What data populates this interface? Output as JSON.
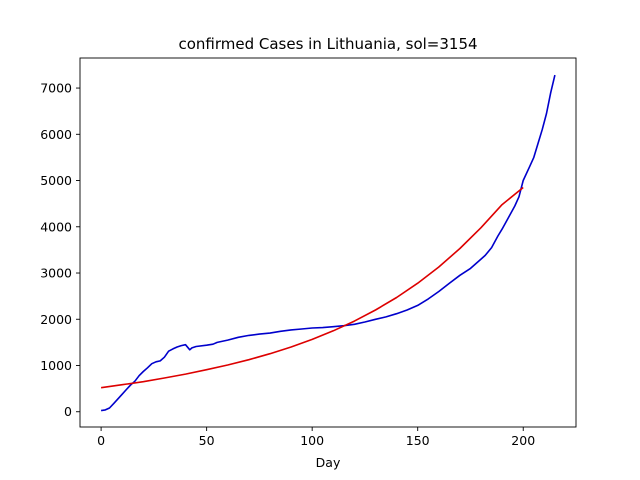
{
  "chart_data": {
    "type": "line",
    "title": "confirmed Cases in Lithuania, sol=3154",
    "xlabel": "Day",
    "ylabel": "",
    "xlim": [
      -10,
      225
    ],
    "ylim": [
      -330,
      7650
    ],
    "xticks": [
      0,
      50,
      100,
      150,
      200
    ],
    "yticks": [
      0,
      1000,
      2000,
      3000,
      4000,
      5000,
      6000,
      7000
    ],
    "grid": false,
    "series": [
      {
        "color": "#0000cc",
        "x": [
          0,
          2,
          4,
          6,
          8,
          10,
          12,
          14,
          16,
          18,
          20,
          22,
          24,
          26,
          28,
          30,
          32,
          34,
          36,
          38,
          40,
          42,
          43,
          45,
          50,
          53,
          55,
          60,
          65,
          70,
          75,
          80,
          85,
          90,
          95,
          100,
          105,
          110,
          115,
          120,
          125,
          130,
          135,
          140,
          145,
          150,
          155,
          160,
          165,
          170,
          175,
          180,
          182,
          185,
          188,
          190,
          193,
          196,
          198,
          200,
          203,
          205,
          207,
          209,
          211,
          213,
          215
        ],
        "y": [
          25,
          40,
          80,
          180,
          280,
          380,
          480,
          580,
          660,
          780,
          870,
          950,
          1040,
          1080,
          1100,
          1180,
          1310,
          1360,
          1400,
          1430,
          1450,
          1340,
          1380,
          1410,
          1440,
          1460,
          1500,
          1550,
          1610,
          1650,
          1680,
          1700,
          1740,
          1770,
          1790,
          1810,
          1820,
          1840,
          1860,
          1890,
          1940,
          2000,
          2050,
          2120,
          2200,
          2300,
          2440,
          2600,
          2780,
          2950,
          3100,
          3300,
          3380,
          3550,
          3800,
          3950,
          4200,
          4450,
          4650,
          5000,
          5300,
          5500,
          5800,
          6100,
          6450,
          6900,
          7280
        ]
      },
      {
        "color": "#dd0000",
        "x": [
          0,
          10,
          20,
          30,
          40,
          50,
          60,
          70,
          80,
          90,
          100,
          110,
          120,
          130,
          140,
          150,
          160,
          170,
          180,
          190,
          200
        ],
        "y": [
          520,
          585,
          650,
          730,
          815,
          910,
          1010,
          1125,
          1255,
          1400,
          1565,
          1750,
          1960,
          2200,
          2470,
          2780,
          3130,
          3530,
          3980,
          4480,
          4850
        ]
      }
    ]
  }
}
